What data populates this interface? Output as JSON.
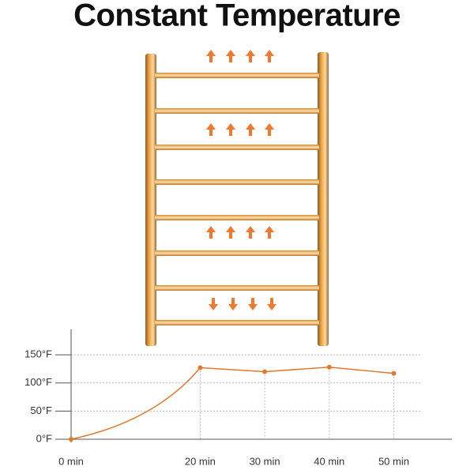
{
  "title": "Constant Temperature",
  "chart_data": {
    "type": "line",
    "x": [
      0,
      20,
      30,
      40,
      50
    ],
    "series": [
      {
        "color": "#e07a2c",
        "values": [
          0,
          127,
          120,
          128,
          117
        ]
      }
    ],
    "xlim": [
      0,
      59
    ],
    "xticks": [
      {
        "value": 0,
        "label": "0  min"
      },
      {
        "value": 20,
        "label": "20  min"
      },
      {
        "value": 30,
        "label": "30  min"
      },
      {
        "value": 40,
        "label": "40  min"
      },
      {
        "value": 50,
        "label": "50  min"
      }
    ],
    "ylim": [
      0,
      195
    ],
    "yticks": [
      {
        "value": 0,
        "label": "0°F"
      },
      {
        "value": 50,
        "label": "50°F"
      },
      {
        "value": 100,
        "label": "100°F"
      },
      {
        "value": 150,
        "label": "150°F"
      }
    ],
    "grid": true
  }
}
